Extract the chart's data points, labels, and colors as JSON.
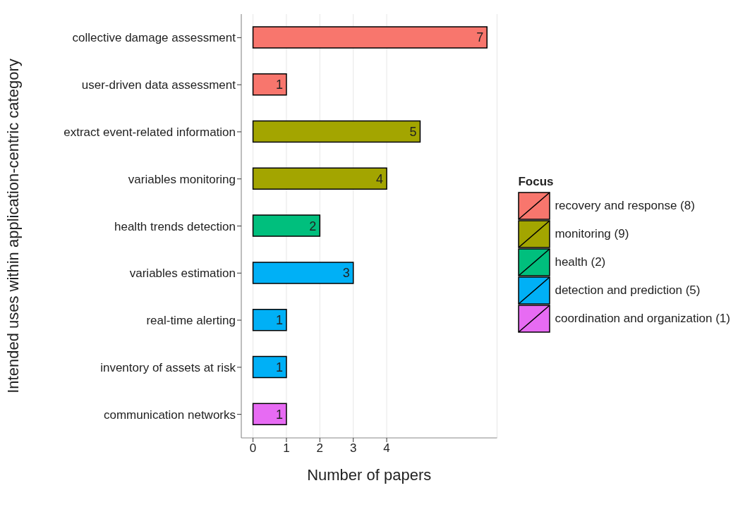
{
  "chart_data": {
    "type": "bar",
    "orientation": "horizontal",
    "stacked": true,
    "xlabel": "Number of papers",
    "ylabel": "Intended uses within application-centric category",
    "legend_title": "Focus",
    "categories": [
      "collective damage assessment",
      "user-driven data assessment",
      "extract event-related information",
      "variables monitoring",
      "health trends detection",
      "variables estimation",
      "real-time alerting",
      "inventory of assets at risk",
      "communication networks"
    ],
    "series": [
      {
        "name": "recovery and response (8)",
        "color": "#f8766d",
        "values": [
          7,
          1,
          null,
          null,
          null,
          null,
          null,
          null,
          null
        ]
      },
      {
        "name": "monitoring (9)",
        "color": "#a3a500",
        "values": [
          null,
          null,
          5,
          4,
          null,
          null,
          null,
          null,
          null
        ]
      },
      {
        "name": "health (2)",
        "color": "#00bf7d",
        "values": [
          null,
          null,
          null,
          null,
          2,
          null,
          null,
          null,
          null
        ]
      },
      {
        "name": "detection and prediction (5)",
        "color": "#00b0f6",
        "values": [
          null,
          null,
          null,
          null,
          null,
          3,
          1,
          1,
          null
        ]
      },
      {
        "name": "coordination and organization (1)",
        "color": "#e76bf3",
        "values": [
          null,
          null,
          null,
          null,
          null,
          null,
          null,
          null,
          1
        ]
      }
    ],
    "xlim": [
      -0.35,
      7.3
    ],
    "xticks": [
      0,
      1,
      2,
      3,
      4
    ],
    "grid": "x",
    "legend": "right",
    "data_labels": true
  }
}
